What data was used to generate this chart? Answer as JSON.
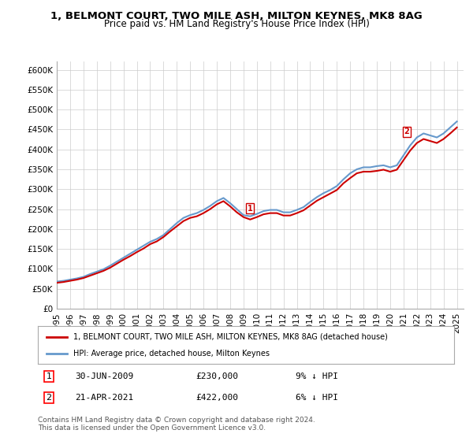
{
  "title": "1, BELMONT COURT, TWO MILE ASH, MILTON KEYNES, MK8 8AG",
  "subtitle": "Price paid vs. HM Land Registry's House Price Index (HPI)",
  "xlabel": "",
  "ylabel": "",
  "ylim": [
    0,
    620000
  ],
  "yticks": [
    0,
    50000,
    100000,
    150000,
    200000,
    250000,
    300000,
    350000,
    400000,
    450000,
    500000,
    550000,
    600000
  ],
  "ytick_labels": [
    "£0",
    "£50K",
    "£100K",
    "£150K",
    "£200K",
    "£250K",
    "£300K",
    "£350K",
    "£400K",
    "£450K",
    "£500K",
    "£550K",
    "£600K"
  ],
  "xtick_years": [
    1995,
    1996,
    1997,
    1998,
    1999,
    2000,
    2001,
    2002,
    2003,
    2004,
    2005,
    2006,
    2007,
    2008,
    2009,
    2010,
    2011,
    2012,
    2013,
    2014,
    2015,
    2016,
    2017,
    2018,
    2019,
    2020,
    2021,
    2022,
    2023,
    2024,
    2025
  ],
  "hpi_x": [
    1995,
    1995.5,
    1996,
    1996.5,
    1997,
    1997.5,
    1998,
    1998.5,
    1999,
    1999.5,
    2000,
    2000.5,
    2001,
    2001.5,
    2002,
    2002.5,
    2003,
    2003.5,
    2004,
    2004.5,
    2005,
    2005.5,
    2006,
    2006.5,
    2007,
    2007.5,
    2008,
    2008.5,
    2009,
    2009.5,
    2010,
    2010.5,
    2011,
    2011.5,
    2012,
    2012.5,
    2013,
    2013.5,
    2014,
    2014.5,
    2015,
    2015.5,
    2016,
    2016.5,
    2017,
    2017.5,
    2018,
    2018.5,
    2019,
    2019.5,
    2020,
    2020.5,
    2021,
    2021.5,
    2022,
    2022.5,
    2023,
    2023.5,
    2024,
    2024.5,
    2025
  ],
  "hpi_y": [
    68000,
    70000,
    73000,
    76000,
    80000,
    87000,
    93000,
    99000,
    108000,
    118000,
    128000,
    138000,
    148000,
    158000,
    168000,
    175000,
    185000,
    200000,
    215000,
    228000,
    235000,
    240000,
    248000,
    258000,
    270000,
    278000,
    265000,
    250000,
    235000,
    232000,
    238000,
    245000,
    248000,
    248000,
    242000,
    242000,
    248000,
    255000,
    268000,
    280000,
    290000,
    298000,
    308000,
    325000,
    340000,
    350000,
    355000,
    355000,
    358000,
    360000,
    355000,
    360000,
    385000,
    410000,
    430000,
    440000,
    435000,
    430000,
    440000,
    455000,
    470000
  ],
  "red_x": [
    1995,
    1995.5,
    1996,
    1996.5,
    1997,
    1997.5,
    1998,
    1998.5,
    1999,
    1999.5,
    2000,
    2000.5,
    2001,
    2001.5,
    2002,
    2002.5,
    2003,
    2003.5,
    2004,
    2004.5,
    2005,
    2005.5,
    2006,
    2006.5,
    2007,
    2007.5,
    2008,
    2008.5,
    2009,
    2009.5,
    2010,
    2010.5,
    2011,
    2011.5,
    2012,
    2012.5,
    2013,
    2013.5,
    2014,
    2014.5,
    2015,
    2015.5,
    2016,
    2016.5,
    2017,
    2017.5,
    2018,
    2018.5,
    2019,
    2019.5,
    2020,
    2020.5,
    2021,
    2021.5,
    2022,
    2022.5,
    2023,
    2023.5,
    2024,
    2024.5,
    2025
  ],
  "red_y": [
    65000,
    67000,
    70000,
    73000,
    77000,
    83000,
    89000,
    95000,
    103000,
    113000,
    123000,
    132000,
    142000,
    151000,
    162000,
    169000,
    180000,
    194000,
    207000,
    220000,
    228000,
    232000,
    240000,
    250000,
    262000,
    270000,
    257000,
    242000,
    230000,
    224000,
    230000,
    237000,
    240000,
    240000,
    234000,
    234000,
    240000,
    247000,
    259000,
    271000,
    280000,
    289000,
    298000,
    315000,
    328000,
    340000,
    344000,
    344000,
    346000,
    349000,
    344000,
    349000,
    373000,
    397000,
    416000,
    426000,
    421000,
    416000,
    426000,
    440000,
    455000
  ],
  "sale1_x": 2009.5,
  "sale1_y": 230000,
  "sale1_label": "1",
  "sale2_x": 2021.25,
  "sale2_y": 422000,
  "sale2_label": "2",
  "line_color_red": "#cc0000",
  "line_color_blue": "#6699cc",
  "marker_box_color": "#cc0000",
  "legend_label_red": "1, BELMONT COURT, TWO MILE ASH, MILTON KEYNES, MK8 8AG (detached house)",
  "legend_label_blue": "HPI: Average price, detached house, Milton Keynes",
  "annotation1": "1    30-JUN-2009          £230,000          9% ↓ HPI",
  "annotation2": "2    21-APR-2021          £422,000          6% ↓ HPI",
  "footer1": "Contains HM Land Registry data © Crown copyright and database right 2024.",
  "footer2": "This data is licensed under the Open Government Licence v3.0.",
  "bg_color": "#ffffff",
  "plot_bg_color": "#ffffff",
  "grid_color": "#cccccc"
}
